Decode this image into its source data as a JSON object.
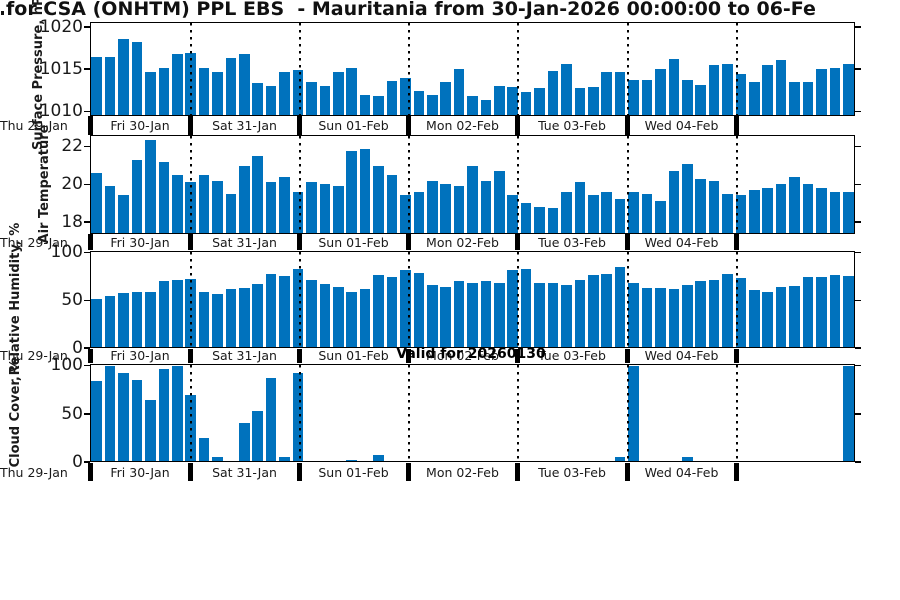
{
  "title": {
    "visible_text": "for CSA (ONHTM) PPL EBS  - Mauritania from 30-Jan-2026 00:00:00 to 06-Fe"
  },
  "valid_label": "Valid for 20260130",
  "colors": {
    "bar": "#0072bd",
    "axis": "#000000",
    "text": "#1a1a1a"
  },
  "x_axis": {
    "left_day_label": "Thu 29-Jan",
    "day_labels": [
      "Fri 30-Jan",
      "Sat 31-Jan",
      "Sun 01-Feb",
      "Mon 02-Feb",
      "Tue 03-Feb",
      "Wed 04-Feb"
    ],
    "last_cell_label": ""
  },
  "chart_data": [
    {
      "name": "surface-pressure",
      "type": "bar",
      "ylabel": "Surface Pressure, hPa",
      "yticks": [
        1010,
        1015,
        1020
      ],
      "ylim": [
        1009.5,
        1020.6
      ],
      "grid": "vertical-dotted-day-boundaries",
      "values": [
        1016.5,
        1016.5,
        1018.7,
        1018.3,
        1014.6,
        1015.1,
        1016.9,
        1017.0,
        1015.2,
        1014.6,
        1016.4,
        1016.8,
        1013.3,
        1012.9,
        1014.7,
        1014.9,
        1013.5,
        1012.9,
        1014.7,
        1015.2,
        1011.9,
        1011.7,
        1013.6,
        1013.9,
        1012.4,
        1011.9,
        1013.5,
        1015.0,
        1011.8,
        1011.3,
        1012.9,
        1012.8,
        1012.2,
        1012.7,
        1014.8,
        1015.6,
        1012.7,
        1012.8,
        1014.6,
        1014.6,
        1013.7,
        1013.7,
        1015.0,
        1016.2,
        1013.7,
        1013.1,
        1015.5,
        1015.6,
        1014.4,
        1013.5,
        1015.5,
        1016.1,
        1013.5,
        1013.4,
        1015.0,
        1015.2,
        1015.6
      ]
    },
    {
      "name": "air-temperature",
      "type": "bar",
      "ylabel": "Air Temperature",
      "yticks": [
        18,
        20,
        22
      ],
      "ylim": [
        17.4,
        22.6
      ],
      "grid": "vertical-dotted-day-boundaries",
      "values": [
        20.6,
        19.9,
        19.4,
        21.3,
        22.4,
        21.2,
        20.5,
        20.1,
        20.5,
        20.2,
        19.5,
        21.0,
        21.5,
        20.1,
        20.4,
        19.6,
        20.1,
        20.0,
        19.9,
        21.8,
        21.9,
        21.0,
        20.5,
        19.4,
        19.6,
        20.2,
        20.0,
        19.9,
        21.0,
        20.2,
        20.7,
        19.4,
        19.0,
        18.8,
        18.7,
        19.6,
        20.1,
        19.4,
        19.6,
        19.2,
        19.6,
        19.5,
        19.1,
        20.7,
        21.1,
        20.3,
        20.2,
        19.5,
        19.4,
        19.7,
        19.8,
        20.0,
        20.4,
        20.0,
        19.8,
        19.6,
        19.6
      ]
    },
    {
      "name": "relative-humidity",
      "type": "bar",
      "ylabel": "Relative Humidity, %",
      "yticks": [
        0,
        50,
        100
      ],
      "ylim": [
        0,
        102
      ],
      "grid": "vertical-dotted-day-boundaries",
      "values": [
        51,
        55,
        58,
        59,
        59,
        70,
        72,
        73,
        59,
        57,
        62,
        63,
        67,
        78,
        76,
        83,
        72,
        67,
        64,
        59,
        62,
        77,
        75,
        82,
        79,
        66,
        64,
        71,
        68,
        70,
        68,
        82,
        83,
        68,
        68,
        66,
        72,
        77,
        78,
        85,
        68,
        63,
        63,
        62,
        66,
        71,
        72,
        78,
        74,
        61,
        59,
        64,
        65,
        75,
        75,
        77,
        76
      ]
    },
    {
      "name": "cloud-cover",
      "type": "bar",
      "ylabel": "Cloud Cover, %",
      "yticks": [
        0,
        50,
        100
      ],
      "ylim": [
        0,
        102
      ],
      "grid": "vertical-dotted-day-boundaries",
      "values": [
        85,
        100,
        93,
        86,
        64,
        97,
        100,
        70,
        24,
        4,
        0,
        40,
        53,
        88,
        4,
        93,
        0,
        0,
        0,
        1,
        0,
        6,
        0,
        0,
        0,
        0,
        0,
        0,
        0,
        0,
        0,
        0,
        0,
        0,
        0,
        0,
        0,
        0,
        0,
        4,
        100,
        0,
        0,
        0,
        4,
        0,
        0,
        0,
        0,
        0,
        0,
        0,
        0,
        0,
        0,
        0,
        100
      ]
    }
  ]
}
